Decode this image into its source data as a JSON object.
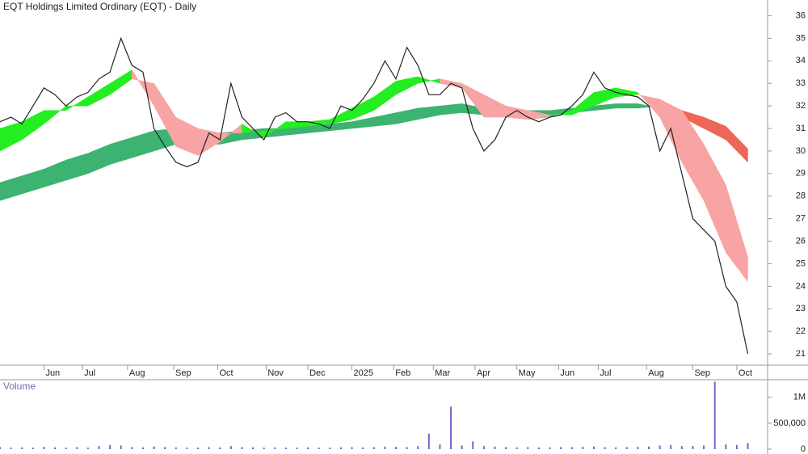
{
  "chart_data": [
    {
      "type": "ohlc-bands",
      "title": "EQT Holdings Limited Ordinary (EQT) - Daily",
      "xlim": [
        0,
        349
      ],
      "ylim": [
        20.5,
        36.7
      ],
      "yticks": [
        21,
        22,
        23,
        24,
        25,
        26,
        27,
        28,
        29,
        30,
        31,
        32,
        33,
        34,
        35,
        36
      ],
      "xticks": [
        {
          "value": 20,
          "label": "Jun"
        },
        {
          "value": 37.5,
          "label": "Jul"
        },
        {
          "value": 58,
          "label": "Aug"
        },
        {
          "value": 79,
          "label": "Sep"
        },
        {
          "value": 99,
          "label": "Oct"
        },
        {
          "value": 121,
          "label": "Nov"
        },
        {
          "value": 140,
          "label": "Dec"
        },
        {
          "value": 160,
          "label": "2025"
        },
        {
          "value": 179,
          "label": "Feb"
        },
        {
          "value": 197,
          "label": "Mar"
        },
        {
          "value": 216,
          "label": "Apr"
        },
        {
          "value": 235,
          "label": "May"
        },
        {
          "value": 254,
          "label": "Jun"
        },
        {
          "value": 272,
          "label": "Jul"
        },
        {
          "value": 294,
          "label": "Aug"
        },
        {
          "value": 315,
          "label": "Sep"
        },
        {
          "value": 335,
          "label": "Oct"
        }
      ],
      "x": [
        0,
        5,
        10,
        15,
        20,
        25,
        30,
        35,
        40,
        45,
        50,
        55,
        60,
        65,
        70,
        75,
        80,
        85,
        90,
        95,
        100,
        105,
        110,
        115,
        120,
        125,
        130,
        135,
        140,
        145,
        150,
        155,
        160,
        165,
        170,
        175,
        180,
        185,
        190,
        195,
        200,
        205,
        210,
        215,
        220,
        225,
        230,
        235,
        240,
        245,
        250,
        255,
        260,
        265,
        270,
        275,
        280,
        285,
        290,
        295,
        300,
        305,
        310,
        315,
        320,
        325,
        330,
        335,
        340
      ],
      "close": [
        31.3,
        31.5,
        31.2,
        32.0,
        32.8,
        32.5,
        32.0,
        32.4,
        32.6,
        33.2,
        33.5,
        35.0,
        33.8,
        33.5,
        31.0,
        30.2,
        29.5,
        29.3,
        29.5,
        30.8,
        30.5,
        33.0,
        31.5,
        31.0,
        30.5,
        31.5,
        31.7,
        31.3,
        31.3,
        31.2,
        31.0,
        32.0,
        31.8,
        32.3,
        33.0,
        34.0,
        33.2,
        34.6,
        33.8,
        32.5,
        32.5,
        33.0,
        32.8,
        31.0,
        30.0,
        30.5,
        31.5,
        31.8,
        31.5,
        31.3,
        31.5,
        31.6,
        32.0,
        32.5,
        33.5,
        32.8,
        32.6,
        32.5,
        32.4,
        32.0,
        30.0,
        31.0,
        29.0,
        27.0,
        26.5,
        26.0,
        24.0,
        23.3,
        21.0
      ],
      "color": "#222222",
      "band_x": [
        0,
        10,
        20,
        30,
        40,
        50,
        60,
        70,
        80,
        90,
        100,
        110,
        120,
        130,
        140,
        150,
        160,
        170,
        180,
        190,
        200,
        210,
        220,
        230,
        240,
        250,
        260,
        270,
        280,
        290,
        300,
        310,
        320,
        330,
        340
      ],
      "bands": [
        {
          "fast": [
            31.0,
            31.3,
            31.8,
            31.8,
            32.4,
            33.0,
            33.6,
            32.0,
            30.2,
            29.8,
            30.4,
            31.2,
            30.6,
            31.3,
            31.3,
            31.4,
            31.9,
            32.4,
            33.1,
            33.3,
            33.0,
            32.8,
            31.5,
            31.5,
            31.4,
            31.5,
            31.8,
            32.6,
            32.8,
            32.6,
            31.5,
            29.5,
            27.8,
            25.5,
            24.2
          ],
          "slow": [
            30.0,
            30.5,
            31.2,
            32.0,
            32.0,
            32.5,
            33.2,
            33.0,
            31.5,
            31.0,
            30.8,
            30.8,
            30.9,
            31.0,
            31.1,
            31.2,
            31.4,
            31.8,
            32.5,
            33.0,
            33.2,
            33.0,
            32.5,
            32.0,
            31.8,
            31.6,
            31.6,
            32.0,
            32.4,
            32.5,
            32.3,
            31.8,
            30.3,
            28.5,
            25.3
          ],
          "up_color": "#22ee22",
          "down_color": "#f8a4a4"
        },
        {
          "fast": [
            28.6,
            28.9,
            29.2,
            29.6,
            29.9,
            30.3,
            30.6,
            30.9,
            31.0,
            30.9,
            30.8,
            30.9,
            31.0,
            31.0,
            31.1,
            31.2,
            31.3,
            31.5,
            31.7,
            31.9,
            32.0,
            32.1,
            31.9,
            31.8,
            31.8,
            31.8,
            31.9,
            32.0,
            32.1,
            32.1,
            31.9,
            31.5,
            31.0,
            30.5,
            29.5
          ],
          "slow": [
            27.8,
            28.1,
            28.4,
            28.7,
            29.0,
            29.4,
            29.7,
            30.0,
            30.3,
            30.3,
            30.3,
            30.5,
            30.6,
            30.7,
            30.8,
            30.9,
            31.0,
            31.1,
            31.2,
            31.4,
            31.6,
            31.7,
            31.6,
            31.5,
            31.6,
            31.6,
            31.7,
            31.8,
            31.9,
            31.9,
            32.0,
            31.8,
            31.5,
            31.1,
            30.1
          ],
          "up_color": "#3cb371",
          "down_color": "#ee6655"
        }
      ]
    },
    {
      "type": "bar",
      "title": "Volume",
      "xlim": [
        0,
        349
      ],
      "ylim": [
        0,
        1340000
      ],
      "yticks": [
        {
          "value": 0,
          "label": "0"
        },
        {
          "value": 500000,
          "label": "500,000"
        },
        {
          "value": 1000000,
          "label": "1M"
        }
      ],
      "color": "#6a6ad0",
      "x": [
        0,
        5,
        10,
        15,
        20,
        25,
        30,
        35,
        40,
        45,
        50,
        55,
        60,
        65,
        70,
        75,
        80,
        85,
        90,
        95,
        100,
        105,
        110,
        115,
        120,
        125,
        130,
        135,
        140,
        145,
        150,
        155,
        160,
        165,
        170,
        175,
        180,
        185,
        190,
        195,
        200,
        205,
        210,
        215,
        220,
        225,
        230,
        235,
        240,
        245,
        250,
        255,
        260,
        265,
        270,
        275,
        280,
        285,
        290,
        295,
        300,
        305,
        310,
        315,
        320,
        325,
        330,
        335,
        340
      ],
      "values": [
        40000,
        30000,
        35000,
        30000,
        45000,
        35000,
        30000,
        40000,
        30000,
        60000,
        80000,
        70000,
        40000,
        35000,
        50000,
        40000,
        35000,
        30000,
        30000,
        40000,
        35000,
        60000,
        40000,
        35000,
        30000,
        35000,
        30000,
        30000,
        35000,
        30000,
        30000,
        35000,
        40000,
        35000,
        40000,
        50000,
        45000,
        40000,
        60000,
        300000,
        90000,
        820000,
        70000,
        150000,
        60000,
        50000,
        40000,
        35000,
        40000,
        35000,
        35000,
        40000,
        40000,
        45000,
        50000,
        40000,
        35000,
        40000,
        45000,
        50000,
        70000,
        80000,
        60000,
        60000,
        70000,
        1300000,
        90000,
        80000,
        120000
      ]
    }
  ]
}
